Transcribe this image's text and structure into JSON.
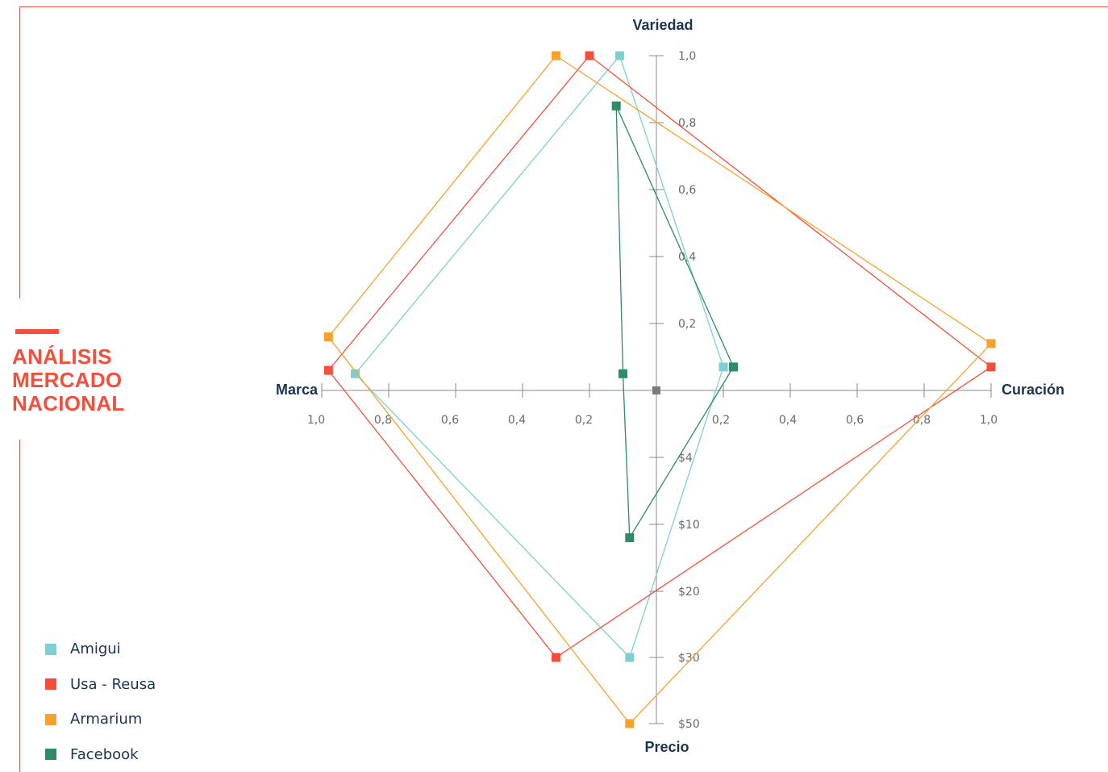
{
  "title_lines": [
    "ANÁLISIS",
    "MERCADO",
    "NACIONAL"
  ],
  "legend": [
    {
      "label": "Amigui",
      "color": "#7ecfd1"
    },
    {
      "label": "Usa - Reusa",
      "color": "#f44f3d"
    },
    {
      "label": "Armarium",
      "color": "#f8a12c"
    },
    {
      "label": "Facebook",
      "color": "#2e8b68"
    }
  ],
  "chart_data": {
    "type": "scatter",
    "axes": {
      "top": {
        "label": "Variedad",
        "ticks": [
          "0,2",
          "0,4",
          "0,6",
          "0,8",
          "1,0"
        ],
        "tick_values": [
          0.2,
          0.4,
          0.6,
          0.8,
          1.0
        ]
      },
      "right": {
        "label": "Curación",
        "ticks": [
          "0,2",
          "0,4",
          "0,6",
          "0,8",
          "1,0"
        ],
        "tick_values": [
          0.2,
          0.4,
          0.6,
          0.8,
          1.0
        ]
      },
      "left": {
        "label": "Marca",
        "ticks": [
          "0,2",
          "0,4",
          "0,6",
          "0,8",
          "1,0"
        ],
        "tick_values": [
          0.2,
          0.4,
          0.6,
          0.8,
          1.0
        ]
      },
      "bottom": {
        "label": "Precio",
        "ticks": [
          "$4",
          "$10",
          "$20",
          "$30",
          "$50"
        ],
        "tick_values": [
          4,
          10,
          20,
          30,
          50
        ]
      }
    },
    "series": [
      {
        "name": "Amigui",
        "color": "#7ecfd1",
        "points": [
          {
            "axis": "top",
            "value": 1.0,
            "offset": -0.11
          },
          {
            "axis": "right",
            "value": 0.2,
            "offset": 0.07
          },
          {
            "axis": "bottom",
            "value": 30,
            "offset": -0.08
          },
          {
            "axis": "left",
            "value": 0.9,
            "offset": 0.05
          }
        ]
      },
      {
        "name": "Usa - Reusa",
        "color": "#f44f3d",
        "points": [
          {
            "axis": "top",
            "value": 1.0,
            "offset": -0.2
          },
          {
            "axis": "right",
            "value": 1.0,
            "offset": 0.07
          },
          {
            "axis": "bottom",
            "value": 30,
            "offset": -0.3
          },
          {
            "axis": "left",
            "value": 0.98,
            "offset": 0.06
          }
        ]
      },
      {
        "name": "Armarium",
        "color": "#f8a12c",
        "points": [
          {
            "axis": "top",
            "value": 1.0,
            "offset": -0.3
          },
          {
            "axis": "right",
            "value": 1.0,
            "offset": 0.14
          },
          {
            "axis": "bottom",
            "value": 50,
            "offset": -0.08
          },
          {
            "axis": "left",
            "value": 0.98,
            "offset": 0.16
          }
        ]
      },
      {
        "name": "Facebook",
        "color": "#2e8b68",
        "points": [
          {
            "axis": "top",
            "value": 0.85,
            "offset": -0.12
          },
          {
            "axis": "right",
            "value": 0.23,
            "offset": 0.07
          },
          {
            "axis": "bottom",
            "value": 12,
            "offset": -0.08
          },
          {
            "axis": "left",
            "value": 0.1,
            "offset": 0.05
          }
        ]
      }
    ]
  }
}
